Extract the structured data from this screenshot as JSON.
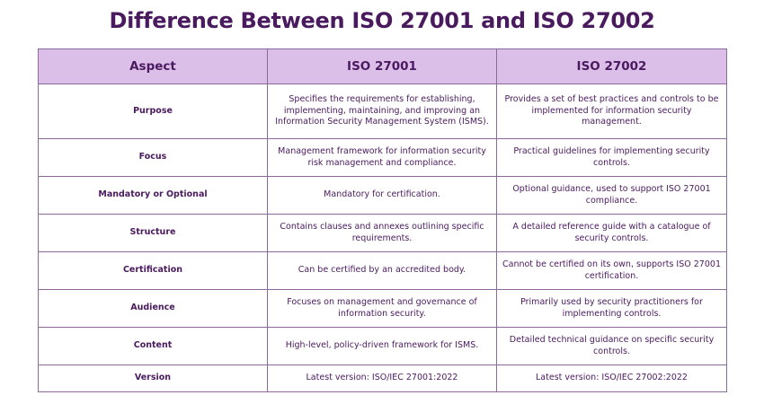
{
  "title": "Difference Between ISO 27001 and ISO 27002",
  "table": {
    "headers": [
      "Aspect",
      "ISO 27001",
      "ISO 27002"
    ],
    "rows": [
      {
        "aspect": "Purpose",
        "iso27001": "Specifies the requirements for establishing, implementing, maintaining, and improving an Information Security Management System (ISMS).",
        "iso27002": "Provides a set of best practices and controls to be implemented for information security management."
      },
      {
        "aspect": "Focus",
        "iso27001": "Management framework for information security risk management and compliance.",
        "iso27002": "Practical guidelines for implementing security controls."
      },
      {
        "aspect": "Mandatory or Optional",
        "iso27001": "Mandatory for certification.",
        "iso27002": "Optional guidance, used to support ISO 27001 compliance."
      },
      {
        "aspect": "Structure",
        "iso27001": "Contains clauses and annexes outlining specific requirements.",
        "iso27002": "A detailed reference guide with a catalogue of security controls."
      },
      {
        "aspect": "Certification",
        "iso27001": "Can be certified by an accredited body.",
        "iso27002": "Cannot be certified on its own, supports ISO 27001 certification."
      },
      {
        "aspect": "Audience",
        "iso27001": "Focuses on management and governance of information security.",
        "iso27002": "Primarily used by security practitioners for implementing controls."
      },
      {
        "aspect": "Content",
        "iso27001": "High-level, policy-driven framework for ISMS.",
        "iso27002": "Detailed technical guidance on specific security controls."
      },
      {
        "aspect": "Version",
        "iso27001": "Latest version: ISO/IEC 27001:2022",
        "iso27002": "Latest version: ISO/IEC 27002:2022"
      }
    ]
  },
  "colors": {
    "header_bg": "#dcbfe9",
    "text": "#4a1a5e",
    "border": "#8a6a99"
  }
}
